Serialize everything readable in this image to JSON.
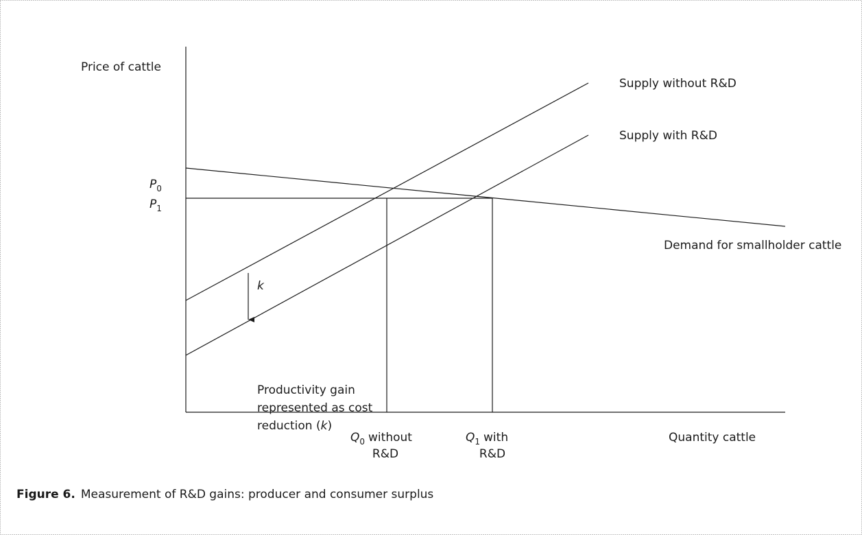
{
  "y_axis_label": "Price of cattle",
  "p0": {
    "symbol": "P",
    "subscript": "0"
  },
  "p1": {
    "symbol": "P",
    "subscript": "1"
  },
  "supply_without": "Supply without R&D",
  "supply_with": "Supply with R&D",
  "demand": "Demand for smallholder cattle",
  "shift_label": "k",
  "productivity_note": {
    "lines": [
      "Productivity gain",
      "represented as cost",
      "reduction ("
    ],
    "variable": "k",
    "closing": ")"
  },
  "q0": {
    "symbol": "Q",
    "subscript": "0",
    "first_line": "without",
    "second_line": "R&D"
  },
  "q1": {
    "symbol": "Q",
    "subscript": "1",
    "first_line": "with",
    "second_line": "R&D"
  },
  "x_axis_label": "Quantity cattle",
  "caption": {
    "label": "Figure 6.",
    "text": "Measurement of R&D gains: producer and consumer surplus"
  }
}
